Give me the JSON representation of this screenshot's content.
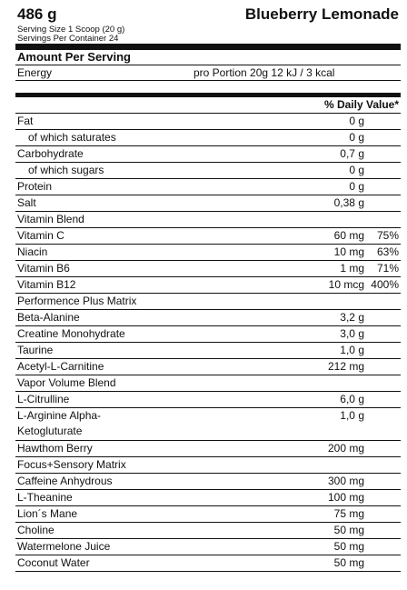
{
  "header": {
    "weight": "486 g",
    "flavor": "Blueberry Lemonade",
    "serving_size": "Serving Size 1 Scoop (20 g)",
    "servings_per_container": "Servings Per Container 24"
  },
  "amount_per_serving": "Amount Per Serving",
  "energy": {
    "label": "Energy",
    "value": "pro Portion 20g 12 kJ / 3 kcal"
  },
  "daily_value_header": "% Daily Value*",
  "rows": [
    {
      "name": "Fat",
      "amount": "0 g",
      "dv": ""
    },
    {
      "name": "of which saturates",
      "amount": "0 g",
      "dv": "",
      "indent": true
    },
    {
      "name": "Carbohydrate",
      "amount": "0,7 g",
      "dv": ""
    },
    {
      "name": "of which sugars",
      "amount": "0 g",
      "dv": "",
      "indent": true
    },
    {
      "name": "Protein",
      "amount": "0 g",
      "dv": ""
    },
    {
      "name": "Salt",
      "amount": "0,38 g",
      "dv": ""
    },
    {
      "name": "Vitamin Blend",
      "amount": "",
      "dv": ""
    },
    {
      "name": "Vitamin C",
      "amount": "60 mg",
      "dv": "75%"
    },
    {
      "name": "Niacin",
      "amount": "10 mg",
      "dv": "63%"
    },
    {
      "name": "Vitamin B6",
      "amount": "1 mg",
      "dv": "71%"
    },
    {
      "name": "Vitamin B12",
      "amount": "10 mcg",
      "dv": "400%"
    },
    {
      "name": "Performence Plus Matrix",
      "amount": "",
      "dv": ""
    },
    {
      "name": "Beta-Alanine",
      "amount": "3,2 g",
      "dv": ""
    },
    {
      "name": "Creatine Monohydrate",
      "amount": "3,0 g",
      "dv": ""
    },
    {
      "name": "Taurine",
      "amount": "1,0 g",
      "dv": ""
    },
    {
      "name": "Acetyl-L-Carnitine",
      "amount": "212 mg",
      "dv": ""
    },
    {
      "name": "Vapor Volume Blend",
      "amount": "",
      "dv": ""
    },
    {
      "name": "L-Citrulline",
      "amount": "6,0 g",
      "dv": ""
    },
    {
      "name": "L-Arginine Alpha-Ketogluturate",
      "amount": "1,0 g",
      "dv": "",
      "tall": true
    },
    {
      "name": "Hawthom Berry",
      "amount": "200 mg",
      "dv": ""
    },
    {
      "name": "Focus+Sensory Matrix",
      "amount": "",
      "dv": ""
    },
    {
      "name": "Caffeine Anhydrous",
      "amount": "300 mg",
      "dv": ""
    },
    {
      "name": "L-Theanine",
      "amount": "100 mg",
      "dv": ""
    },
    {
      "name": "Lion´s Mane",
      "amount": "75 mg",
      "dv": ""
    },
    {
      "name": "Choline",
      "amount": "50 mg",
      "dv": ""
    },
    {
      "name": "Watermelone Juice",
      "amount": "50 mg",
      "dv": ""
    },
    {
      "name": "Coconut Water",
      "amount": "50 mg",
      "dv": ""
    }
  ]
}
